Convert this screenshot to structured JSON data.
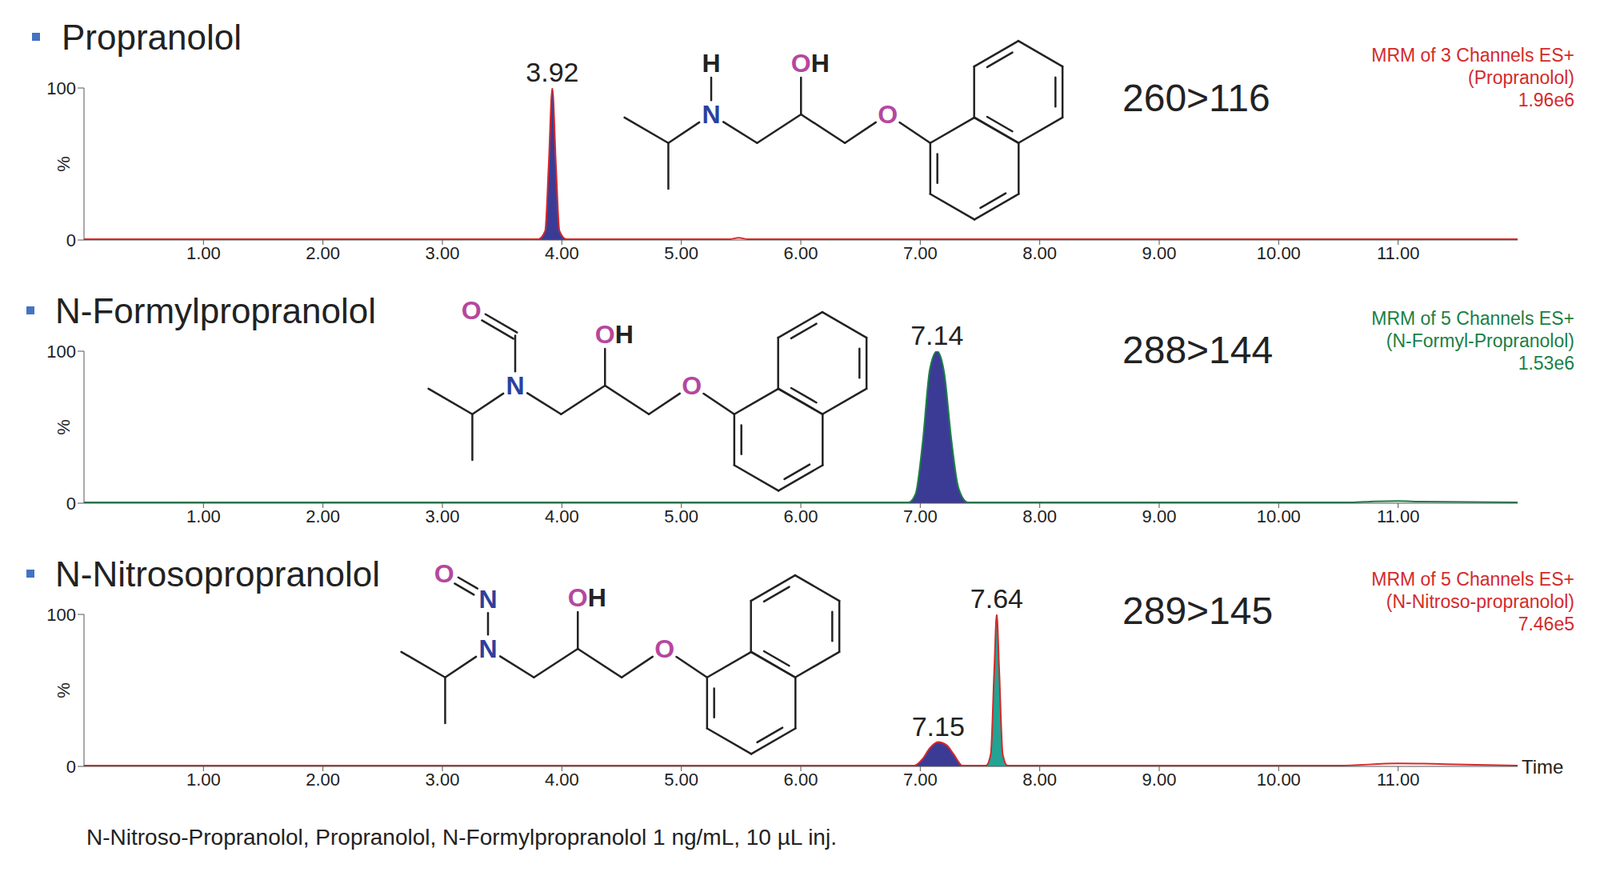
{
  "chart_data": [
    {
      "type": "line",
      "title": "Propranolol",
      "transition": "260>116",
      "trace_label": [
        "MRM of 3 Channels ES+",
        "(Propranolol)",
        "1.96e6"
      ],
      "color": "#d42a2a",
      "x": [
        0,
        3.8,
        3.86,
        3.89,
        3.92,
        3.95,
        3.98,
        4.04,
        5.4,
        5.48,
        5.56,
        12
      ],
      "values": [
        0.5,
        0.5,
        6,
        50,
        100,
        50,
        6,
        0.5,
        0.5,
        1.5,
        0.5,
        0.5
      ],
      "peaks": {
        "x": [
          3.92
        ],
        "colors": [
          "#3b3b96"
        ]
      },
      "xlim": [
        0,
        12
      ],
      "xticks": [
        {
          "value": 1,
          "label": "1.00"
        },
        {
          "value": 2,
          "label": "2.00"
        },
        {
          "value": 3,
          "label": "3.00"
        },
        {
          "value": 4,
          "label": "4.00"
        },
        {
          "value": 5,
          "label": "5.00"
        },
        {
          "value": 6,
          "label": "6.00"
        },
        {
          "value": 7,
          "label": "7.00"
        },
        {
          "value": 8,
          "label": "8.00"
        },
        {
          "value": 9,
          "label": "9.00"
        },
        {
          "value": 10,
          "label": "10.00"
        },
        {
          "value": 11,
          "label": "11.00"
        }
      ],
      "ylim": [
        0,
        100
      ],
      "yticks": [
        0,
        100
      ],
      "ylabel": "%",
      "structure": {
        "amine": "N",
        "hydroxyl": "OH",
        "ether": "O",
        "substituent": [
          "H"
        ]
      }
    },
    {
      "type": "line",
      "title": "N-Formylpropranolol",
      "transition": "288>144",
      "trace_label": [
        "MRM of 5 Channels ES+",
        "(N-Formyl-Propranolol)",
        "1.53e6"
      ],
      "color": "#1b7f45",
      "x": [
        0,
        6.9,
        6.96,
        7.02,
        7.08,
        7.14,
        7.2,
        7.26,
        7.32,
        7.4,
        10.6,
        10.8,
        11.0,
        11.2,
        12
      ],
      "values": [
        0.5,
        0.5,
        6,
        40,
        88,
        100,
        86,
        42,
        10,
        0.5,
        0.5,
        1.2,
        1.5,
        1,
        0.5
      ],
      "peaks": {
        "x": [
          7.14
        ],
        "colors": [
          "#3b3b96"
        ]
      },
      "xlim": [
        0,
        12
      ],
      "xticks": [
        {
          "value": 1,
          "label": "1.00"
        },
        {
          "value": 2,
          "label": "2.00"
        },
        {
          "value": 3,
          "label": "3.00"
        },
        {
          "value": 4,
          "label": "4.00"
        },
        {
          "value": 5,
          "label": "5.00"
        },
        {
          "value": 6,
          "label": "6.00"
        },
        {
          "value": 7,
          "label": "7.00"
        },
        {
          "value": 8,
          "label": "8.00"
        },
        {
          "value": 9,
          "label": "9.00"
        },
        {
          "value": 10,
          "label": "10.00"
        },
        {
          "value": 11,
          "label": "11.00"
        }
      ],
      "ylim": [
        0,
        100
      ],
      "yticks": [
        0,
        100
      ],
      "ylabel": "%",
      "structure": {
        "amine": "N",
        "hydroxyl": "OH",
        "ether": "O",
        "substituent": [
          null,
          "O"
        ]
      }
    },
    {
      "type": "line",
      "title": "N-Nitrosopropranolol",
      "transition": "289>145",
      "trace_label": [
        "MRM of 5 Channels ES+",
        "(N-Nitroso-propranolol)",
        "7.46e5"
      ],
      "color": "#d42a2a",
      "x": [
        0,
        6.95,
        7.02,
        7.08,
        7.15,
        7.22,
        7.28,
        7.35,
        7.55,
        7.59,
        7.62,
        7.64,
        7.66,
        7.69,
        7.73,
        10.5,
        11.0,
        11.4,
        12
      ],
      "values": [
        0.5,
        0.5,
        5,
        12,
        16,
        14,
        8,
        0.5,
        0.5,
        8,
        65,
        100,
        65,
        8,
        0.5,
        0.5,
        2,
        1.5,
        0.5
      ],
      "peaks": {
        "x": [
          7.15,
          7.64
        ],
        "colors": [
          "#3b3b96",
          "#22a394"
        ]
      },
      "xlim": [
        0,
        12
      ],
      "xticks": [
        {
          "value": 1,
          "label": "1.00"
        },
        {
          "value": 2,
          "label": "2.00"
        },
        {
          "value": 3,
          "label": "3.00"
        },
        {
          "value": 4,
          "label": "4.00"
        },
        {
          "value": 5,
          "label": "5.00"
        },
        {
          "value": 6,
          "label": "6.00"
        },
        {
          "value": 7,
          "label": "7.00"
        },
        {
          "value": 8,
          "label": "8.00"
        },
        {
          "value": 9,
          "label": "9.00"
        },
        {
          "value": 10,
          "label": "10.00"
        },
        {
          "value": 11,
          "label": "11.00"
        }
      ],
      "ylim": [
        0,
        100
      ],
      "yticks": [
        0,
        100
      ],
      "ylabel": "%",
      "xlabel": "Time",
      "structure": {
        "amine": "N",
        "hydroxyl": "OH",
        "ether": "O",
        "substituent": [
          "N",
          "O"
        ]
      }
    }
  ],
  "footnote": "N-Nitroso-Propranolol, Propranolol, N-Formylpropranolol 1 ng/mL, 10 µL inj."
}
